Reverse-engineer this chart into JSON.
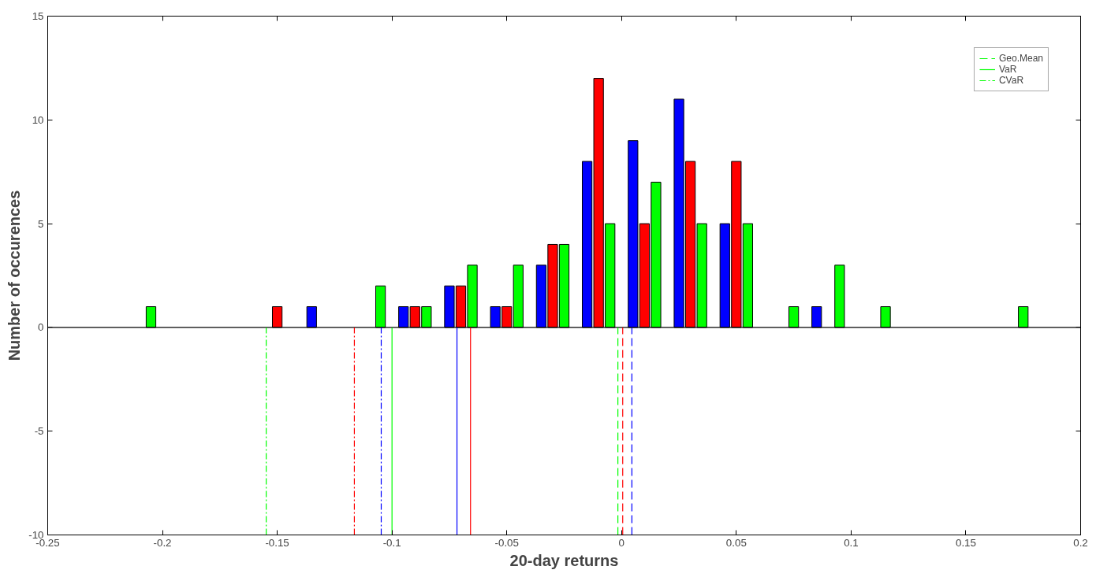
{
  "chart_data": {
    "type": "bar",
    "xlabel": "20-day returns",
    "ylabel": "Number of occurences",
    "xlim": [
      -0.25,
      0.2
    ],
    "xticks": [
      -0.25,
      -0.2,
      -0.15,
      -0.1,
      -0.05,
      0,
      0.05,
      0.1,
      0.15,
      0.2
    ],
    "ylim": [
      -10,
      15
    ],
    "yticks": [
      -10,
      -5,
      0,
      5,
      10,
      15
    ],
    "grid": false,
    "legend": "top right",
    "series": [
      {
        "color": "#0000ff",
        "x": [
          -0.135,
          -0.095,
          -0.075,
          -0.055,
          -0.035,
          -0.015,
          0.005,
          0.025,
          0.045,
          0.085
        ],
        "values": [
          1,
          1,
          2,
          1,
          3,
          8,
          9,
          11,
          5,
          1
        ]
      },
      {
        "color": "#ff0000",
        "x": [
          -0.15,
          -0.09,
          -0.07,
          -0.05,
          -0.03,
          -0.01,
          0.01,
          0.03,
          0.05
        ],
        "values": [
          1,
          1,
          2,
          1,
          4,
          12,
          5,
          8,
          8
        ]
      },
      {
        "color": "#00ff00",
        "x": [
          -0.205,
          -0.105,
          -0.085,
          -0.065,
          -0.045,
          -0.025,
          -0.005,
          0.015,
          0.035,
          0.055,
          0.075,
          0.095,
          0.115,
          0.175
        ],
        "values": [
          1,
          2,
          1,
          3,
          3,
          4,
          5,
          7,
          5,
          5,
          1,
          3,
          1,
          1
        ]
      }
    ],
    "ref_lines": [
      {
        "axis": "y",
        "value": 0,
        "color": "#000000",
        "line_style": "solid"
      },
      {
        "axis": "x",
        "value": -0.0016,
        "label": "Geo.Mean",
        "color": "#00ff00",
        "line_style": "dashed"
      },
      {
        "axis": "x",
        "value": 0.0005,
        "color": "#ff0000",
        "line_style": "dashed"
      },
      {
        "axis": "x",
        "value": 0.0045,
        "color": "#0000ff",
        "line_style": "dashed"
      },
      {
        "axis": "x",
        "value": -0.1,
        "label": "VaR",
        "color": "#00ff00",
        "line_style": "solid"
      },
      {
        "axis": "x",
        "value": -0.0717,
        "color": "#0000ff",
        "line_style": "solid"
      },
      {
        "axis": "x",
        "value": -0.0658,
        "color": "#ff0000",
        "line_style": "solid"
      },
      {
        "axis": "x",
        "value": -0.1548,
        "label": "CVaR",
        "color": "#00ff00",
        "line_style": "dashdot"
      },
      {
        "axis": "x",
        "value": -0.1164,
        "color": "#ff0000",
        "line_style": "dashdot"
      },
      {
        "axis": "x",
        "value": -0.1047,
        "color": "#0000ff",
        "line_style": "dashdot"
      }
    ]
  }
}
